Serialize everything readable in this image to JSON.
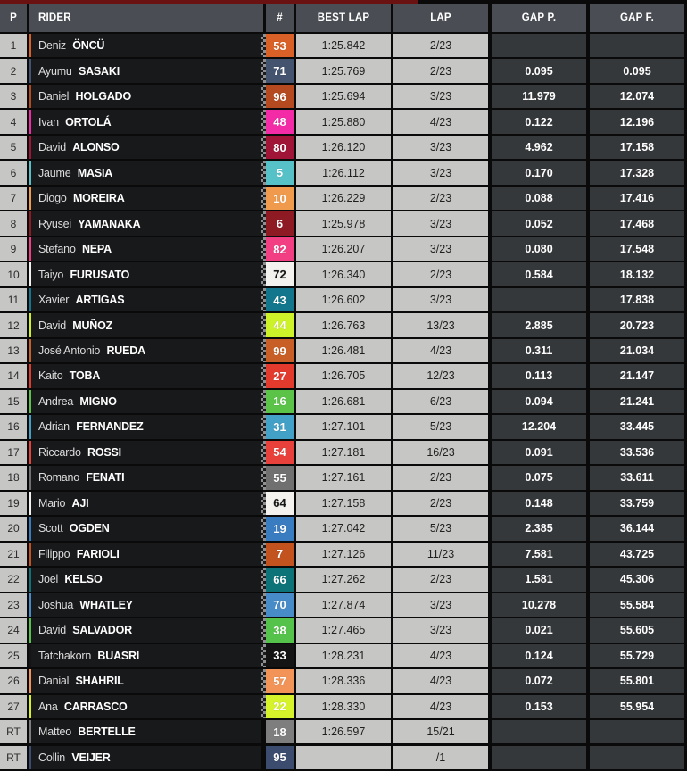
{
  "colors": {
    "top_stripe_red": "#6A1212",
    "header_bg": "#4A4E54",
    "light_cell": "#C6C6C4",
    "dark_cell": "#35383A",
    "rider_cell": "#18191B",
    "page_bg": "#0a0a0a"
  },
  "table": {
    "header": {
      "position": "P",
      "rider": "RIDER",
      "number": "#",
      "best_lap": "BEST LAP",
      "lap": "LAP",
      "gap_prev": "GAP P.",
      "gap_first": "GAP F."
    },
    "rows": [
      {
        "pos": "1",
        "first": "Deniz",
        "last": "ÖNCÜ",
        "num": "53",
        "color": "#D96127",
        "num_color": "#ffffff",
        "checker": true,
        "best_lap": "1:25.842",
        "lap": "2/23",
        "gap_p": "",
        "gap_f": ""
      },
      {
        "pos": "2",
        "first": "Ayumu",
        "last": "SASAKI",
        "num": "71",
        "color": "#44546F",
        "num_color": "#ffffff",
        "checker": true,
        "best_lap": "1:25.769",
        "lap": "2/23",
        "gap_p": "0.095",
        "gap_f": "0.095"
      },
      {
        "pos": "3",
        "first": "Daniel",
        "last": "HOLGADO",
        "num": "96",
        "color": "#B54A20",
        "num_color": "#ffffff",
        "checker": true,
        "best_lap": "1:25.694",
        "lap": "3/23",
        "gap_p": "11.979",
        "gap_f": "12.074"
      },
      {
        "pos": "4",
        "first": "Ivan",
        "last": "ORTOLÁ",
        "num": "48",
        "color": "#F32BA6",
        "num_color": "#ffffff",
        "checker": true,
        "best_lap": "1:25.880",
        "lap": "4/23",
        "gap_p": "0.122",
        "gap_f": "12.196"
      },
      {
        "pos": "5",
        "first": "David",
        "last": "ALONSO",
        "num": "80",
        "color": "#A01438",
        "num_color": "#ffffff",
        "checker": true,
        "best_lap": "1:26.120",
        "lap": "3/23",
        "gap_p": "4.962",
        "gap_f": "17.158"
      },
      {
        "pos": "6",
        "first": "Jaume",
        "last": "MASIA",
        "num": "5",
        "color": "#56C2C8",
        "num_color": "#ffffff",
        "checker": true,
        "best_lap": "1:26.112",
        "lap": "3/23",
        "gap_p": "0.170",
        "gap_f": "17.328"
      },
      {
        "pos": "7",
        "first": "Diogo",
        "last": "MOREIRA",
        "num": "10",
        "color": "#F09A4D",
        "num_color": "#ffffff",
        "checker": true,
        "best_lap": "1:26.229",
        "lap": "2/23",
        "gap_p": "0.088",
        "gap_f": "17.416"
      },
      {
        "pos": "8",
        "first": "Ryusei",
        "last": "YAMANAKA",
        "num": "6",
        "color": "#8E1A24",
        "num_color": "#ffffff",
        "checker": true,
        "best_lap": "1:25.978",
        "lap": "3/23",
        "gap_p": "0.052",
        "gap_f": "17.468"
      },
      {
        "pos": "9",
        "first": "Stefano",
        "last": "NEPA",
        "num": "82",
        "color": "#F23E82",
        "num_color": "#ffffff",
        "checker": true,
        "best_lap": "1:26.207",
        "lap": "3/23",
        "gap_p": "0.080",
        "gap_f": "17.548"
      },
      {
        "pos": "10",
        "first": "Taiyo",
        "last": "FURUSATO",
        "num": "72",
        "color": "#F4F2EE",
        "num_color": "#161616",
        "checker": true,
        "best_lap": "1:26.340",
        "lap": "2/23",
        "gap_p": "0.584",
        "gap_f": "18.132"
      },
      {
        "pos": "11",
        "first": "Xavier",
        "last": "ARTIGAS",
        "num": "43",
        "color": "#12778C",
        "num_color": "#ffffff",
        "checker": true,
        "best_lap": "1:26.602",
        "lap": "3/23",
        "gap_p": "",
        "gap_f": "17.838"
      },
      {
        "pos": "12",
        "first": "David",
        "last": "MUÑOZ",
        "num": "44",
        "color": "#CEF229",
        "num_color": "#ffffff",
        "checker": true,
        "best_lap": "1:26.763",
        "lap": "13/23",
        "gap_p": "2.885",
        "gap_f": "20.723"
      },
      {
        "pos": "13",
        "first": "José Antonio",
        "last": "RUEDA",
        "num": "99",
        "color": "#C85F26",
        "num_color": "#ffffff",
        "checker": true,
        "best_lap": "1:26.481",
        "lap": "4/23",
        "gap_p": "0.311",
        "gap_f": "21.034"
      },
      {
        "pos": "14",
        "first": "Kaito",
        "last": "TOBA",
        "num": "27",
        "color": "#E33A2E",
        "num_color": "#ffffff",
        "checker": true,
        "best_lap": "1:26.705",
        "lap": "12/23",
        "gap_p": "0.113",
        "gap_f": "21.147"
      },
      {
        "pos": "15",
        "first": "Andrea",
        "last": "MIGNO",
        "num": "16",
        "color": "#5BC348",
        "num_color": "#ffffff",
        "checker": true,
        "best_lap": "1:26.681",
        "lap": "6/23",
        "gap_p": "0.094",
        "gap_f": "21.241"
      },
      {
        "pos": "16",
        "first": "Adrian",
        "last": "FERNANDEZ",
        "num": "31",
        "color": "#43A0C6",
        "num_color": "#ffffff",
        "checker": true,
        "best_lap": "1:27.101",
        "lap": "5/23",
        "gap_p": "12.204",
        "gap_f": "33.445"
      },
      {
        "pos": "17",
        "first": "Riccardo",
        "last": "ROSSI",
        "num": "54",
        "color": "#E8413B",
        "num_color": "#ffffff",
        "checker": true,
        "best_lap": "1:27.181",
        "lap": "16/23",
        "gap_p": "0.091",
        "gap_f": "33.536"
      },
      {
        "pos": "18",
        "first": "Romano",
        "last": "FENATI",
        "num": "55",
        "color": "#707070",
        "num_color": "#ffffff",
        "checker": true,
        "best_lap": "1:27.161",
        "lap": "2/23",
        "gap_p": "0.075",
        "gap_f": "33.611"
      },
      {
        "pos": "19",
        "first": "Mario",
        "last": "AJI",
        "num": "64",
        "color": "#F4F2EE",
        "num_color": "#161616",
        "checker": true,
        "best_lap": "1:27.158",
        "lap": "2/23",
        "gap_p": "0.148",
        "gap_f": "33.759"
      },
      {
        "pos": "20",
        "first": "Scott",
        "last": "OGDEN",
        "num": "19",
        "color": "#3A7CC0",
        "num_color": "#ffffff",
        "checker": true,
        "best_lap": "1:27.042",
        "lap": "5/23",
        "gap_p": "2.385",
        "gap_f": "36.144"
      },
      {
        "pos": "21",
        "first": "Filippo",
        "last": "FARIOLI",
        "num": "7",
        "color": "#C2531F",
        "num_color": "#ffffff",
        "checker": true,
        "best_lap": "1:27.126",
        "lap": "11/23",
        "gap_p": "7.581",
        "gap_f": "43.725"
      },
      {
        "pos": "22",
        "first": "Joel",
        "last": "KELSO",
        "num": "66",
        "color": "#0C7378",
        "num_color": "#ffffff",
        "checker": true,
        "best_lap": "1:27.262",
        "lap": "2/23",
        "gap_p": "1.581",
        "gap_f": "45.306"
      },
      {
        "pos": "23",
        "first": "Joshua",
        "last": "WHATLEY",
        "num": "70",
        "color": "#478CC8",
        "num_color": "#ffffff",
        "checker": true,
        "best_lap": "1:27.874",
        "lap": "3/23",
        "gap_p": "10.278",
        "gap_f": "55.584"
      },
      {
        "pos": "24",
        "first": "David",
        "last": "SALVADOR",
        "num": "38",
        "color": "#55C24C",
        "num_color": "#ffffff",
        "checker": true,
        "best_lap": "1:27.465",
        "lap": "3/23",
        "gap_p": "0.021",
        "gap_f": "55.605"
      },
      {
        "pos": "25",
        "first": "Tatchakorn",
        "last": "BUASRI",
        "num": "33",
        "color": "#141414",
        "num_color": "#ffffff",
        "checker": true,
        "best_lap": "1:28.231",
        "lap": "4/23",
        "gap_p": "0.124",
        "gap_f": "55.729"
      },
      {
        "pos": "26",
        "first": "Danial",
        "last": "SHAHRIL",
        "num": "57",
        "color": "#F29457",
        "num_color": "#ffffff",
        "checker": true,
        "best_lap": "1:28.336",
        "lap": "4/23",
        "gap_p": "0.072",
        "gap_f": "55.801"
      },
      {
        "pos": "27",
        "first": "Ana",
        "last": "CARRASCO",
        "num": "22",
        "color": "#D6F22B",
        "num_color": "#ffffff",
        "checker": true,
        "best_lap": "1:28.330",
        "lap": "4/23",
        "gap_p": "0.153",
        "gap_f": "55.954"
      },
      {
        "pos": "RT",
        "first": "Matteo",
        "last": "BERTELLE",
        "num": "18",
        "color": "#7E7E7E",
        "num_color": "#ffffff",
        "checker": false,
        "best_lap": "1:26.597",
        "lap": "15/21",
        "gap_p": "",
        "gap_f": ""
      },
      {
        "pos": "RT",
        "first": "Collin",
        "last": "VEIJER",
        "num": "95",
        "color": "#3C4C6E",
        "num_color": "#ffffff",
        "checker": false,
        "best_lap": "",
        "lap": "/1",
        "gap_p": "",
        "gap_f": ""
      }
    ]
  }
}
